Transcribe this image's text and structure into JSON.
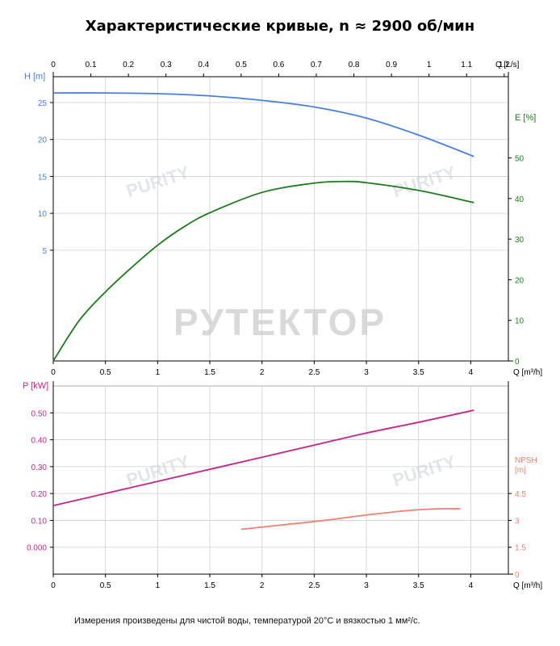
{
  "title": "Характеристические кривые, n ≈ 2900 об/мин",
  "footnote": "Измерения произведены для чистой воды, температурой 20°C и вязкостью 1 мм²/с.",
  "watermark": "РУТЕКТОР",
  "logo_text": "PURITY",
  "colors": {
    "head": "#4a7fe0",
    "efficiency": "#1e7a1e",
    "power": "#c8238a",
    "npsh": "#f08070",
    "axis": "#000000"
  },
  "chart_data": [
    {
      "type": "line",
      "name": "head-efficiency",
      "x_top_label": "Q [L/s]",
      "x_top_ticks": [
        "0",
        "0.1",
        "0.2",
        "0.3",
        "0.4",
        "0.5",
        "0.6",
        "0.7",
        "0.8",
        "0.9",
        "1",
        "1.1",
        "1.2"
      ],
      "x_label": "Q [m³/h]",
      "x_ticks": [
        "0",
        "0.5",
        "1",
        "1.5",
        "2",
        "2.5",
        "3",
        "3.5",
        "4"
      ],
      "xlim": [
        0,
        4.36
      ],
      "y_left_label": "H [m]",
      "y_left_ticks": [
        "5",
        "10",
        "15",
        "20",
        "25"
      ],
      "y_left_lim": [
        -10,
        28.5
      ],
      "y_right_label": "E [%]",
      "y_right_ticks": [
        "0",
        "10",
        "20",
        "30",
        "40",
        "50"
      ],
      "y_right_lim": [
        0,
        70
      ],
      "grid": true,
      "series": [
        {
          "axis": "left",
          "x": [
            0,
            0.5,
            1,
            1.5,
            2,
            2.5,
            3,
            3.5,
            4.03
          ],
          "y": [
            26.3,
            26.3,
            26.2,
            25.9,
            25.3,
            24.4,
            22.9,
            20.6,
            17.7
          ]
        },
        {
          "axis": "right",
          "x": [
            0,
            0.25,
            0.5,
            0.75,
            1,
            1.25,
            1.5,
            2,
            2.5,
            2.8,
            3,
            3.5,
            4.03
          ],
          "y": [
            0,
            10,
            17,
            23,
            28.5,
            33,
            36.5,
            41.5,
            43.8,
            44.2,
            43.9,
            42,
            39
          ]
        }
      ]
    },
    {
      "type": "line",
      "name": "power-npsh",
      "x_label": "Q [m³/h]",
      "x_ticks": [
        "0",
        "0.5",
        "1",
        "1.5",
        "2",
        "2.5",
        "3",
        "3.5",
        "4"
      ],
      "xlim": [
        0,
        4.36
      ],
      "y_left_label": "P [kW]",
      "y_left_ticks": [
        "0.000",
        "0.10",
        "0.20",
        "0.30",
        "0.40",
        "0.50"
      ],
      "y_left_lim": [
        -0.1,
        0.6
      ],
      "y_right_label": "NPSH [m]",
      "y_right_ticks": [
        "0",
        "1.5",
        "3",
        "4.5"
      ],
      "y_right_lim": [
        0,
        10.5
      ],
      "grid": true,
      "series": [
        {
          "axis": "left",
          "x": [
            0,
            0.5,
            1,
            1.5,
            2,
            2.5,
            3,
            3.5,
            4.03
          ],
          "y": [
            0.155,
            0.2,
            0.245,
            0.29,
            0.335,
            0.38,
            0.425,
            0.465,
            0.51
          ]
        },
        {
          "axis": "right",
          "x": [
            1.8,
            2.2,
            2.6,
            3,
            3.4,
            3.7,
            3.9
          ],
          "y": [
            2.5,
            2.75,
            3.0,
            3.3,
            3.55,
            3.65,
            3.65
          ]
        }
      ]
    }
  ]
}
